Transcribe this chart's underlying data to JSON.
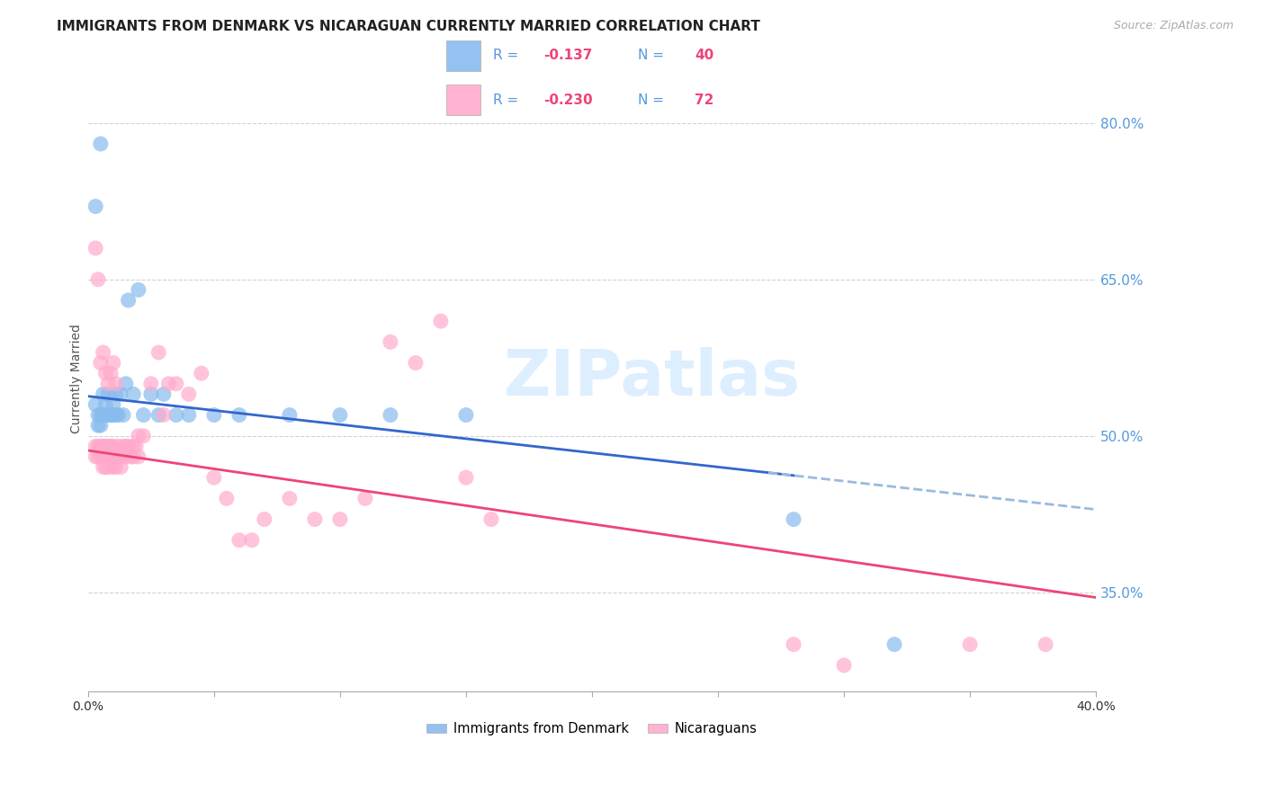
{
  "title": "IMMIGRANTS FROM DENMARK VS NICARAGUAN CURRENTLY MARRIED CORRELATION CHART",
  "source": "Source: ZipAtlas.com",
  "ylabel": "Currently Married",
  "y_axis_ticks_right": [
    0.35,
    0.5,
    0.65,
    0.8
  ],
  "y_axis_labels_right": [
    "35.0%",
    "50.0%",
    "65.0%",
    "80.0%"
  ],
  "legend_label1": "Immigrants from Denmark",
  "legend_label2": "Nicaraguans",
  "blue_scatter_color": "#88bbee",
  "pink_scatter_color": "#ffaacc",
  "blue_line_color": "#3366cc",
  "pink_line_color": "#ee4477",
  "blue_line_dashed_color": "#99bbdd",
  "watermark_color": "#ddeeff",
  "background_color": "#ffffff",
  "grid_color": "#cccccc",
  "title_fontsize": 11,
  "source_fontsize": 9,
  "right_label_color": "#5599dd",
  "legend_text_color": "#5599dd",
  "legend_value_color": "#ee4477",
  "blue_points_x": [
    0.003,
    0.004,
    0.004,
    0.005,
    0.005,
    0.006,
    0.006,
    0.007,
    0.007,
    0.008,
    0.008,
    0.009,
    0.009,
    0.01,
    0.01,
    0.011,
    0.011,
    0.012,
    0.013,
    0.014,
    0.015,
    0.016,
    0.018,
    0.02,
    0.022,
    0.025,
    0.028,
    0.03,
    0.035,
    0.04,
    0.05,
    0.06,
    0.08,
    0.1,
    0.12,
    0.15,
    0.003,
    0.005,
    0.28,
    0.32
  ],
  "blue_points_y": [
    0.53,
    0.52,
    0.51,
    0.52,
    0.51,
    0.52,
    0.54,
    0.53,
    0.52,
    0.54,
    0.52,
    0.52,
    0.52,
    0.53,
    0.52,
    0.54,
    0.52,
    0.52,
    0.54,
    0.52,
    0.55,
    0.63,
    0.54,
    0.64,
    0.52,
    0.54,
    0.52,
    0.54,
    0.52,
    0.52,
    0.52,
    0.52,
    0.52,
    0.52,
    0.52,
    0.52,
    0.72,
    0.78,
    0.42,
    0.3
  ],
  "pink_points_x": [
    0.003,
    0.003,
    0.004,
    0.004,
    0.005,
    0.005,
    0.005,
    0.006,
    0.006,
    0.006,
    0.007,
    0.007,
    0.007,
    0.008,
    0.008,
    0.008,
    0.009,
    0.009,
    0.01,
    0.01,
    0.01,
    0.011,
    0.011,
    0.012,
    0.012,
    0.013,
    0.013,
    0.014,
    0.015,
    0.015,
    0.016,
    0.017,
    0.018,
    0.018,
    0.019,
    0.02,
    0.02,
    0.022,
    0.025,
    0.028,
    0.03,
    0.032,
    0.035,
    0.04,
    0.045,
    0.05,
    0.055,
    0.06,
    0.065,
    0.07,
    0.08,
    0.09,
    0.1,
    0.11,
    0.12,
    0.13,
    0.14,
    0.15,
    0.16,
    0.003,
    0.004,
    0.005,
    0.006,
    0.007,
    0.008,
    0.009,
    0.01,
    0.011,
    0.28,
    0.3,
    0.35,
    0.38
  ],
  "pink_points_y": [
    0.49,
    0.48,
    0.49,
    0.48,
    0.49,
    0.48,
    0.49,
    0.49,
    0.48,
    0.47,
    0.49,
    0.48,
    0.47,
    0.49,
    0.48,
    0.47,
    0.49,
    0.48,
    0.49,
    0.48,
    0.47,
    0.48,
    0.47,
    0.49,
    0.48,
    0.47,
    0.48,
    0.49,
    0.49,
    0.48,
    0.49,
    0.48,
    0.49,
    0.48,
    0.49,
    0.5,
    0.48,
    0.5,
    0.55,
    0.58,
    0.52,
    0.55,
    0.55,
    0.54,
    0.56,
    0.46,
    0.44,
    0.4,
    0.4,
    0.42,
    0.44,
    0.42,
    0.42,
    0.44,
    0.59,
    0.57,
    0.61,
    0.46,
    0.42,
    0.68,
    0.65,
    0.57,
    0.58,
    0.56,
    0.55,
    0.56,
    0.57,
    0.55,
    0.3,
    0.28,
    0.3,
    0.3
  ]
}
